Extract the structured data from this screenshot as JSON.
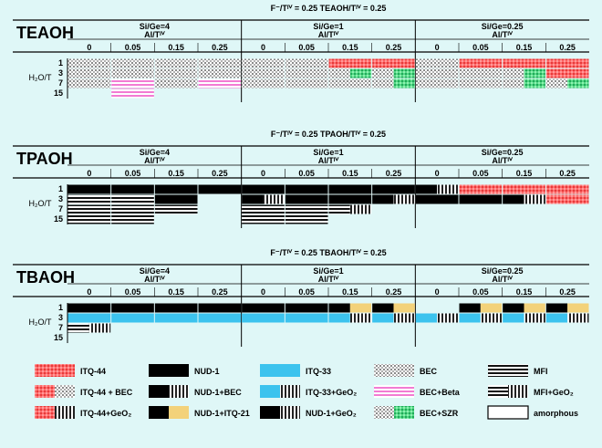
{
  "colors": {
    "background": "#dff7f7",
    "itq44": "#ff5a5a",
    "itq33": "#3cc3ee",
    "nud1": "#000000",
    "yellow": "#f3d27a",
    "szr": "#3fcf6f",
    "beta": "#f48ad8",
    "bec": "#9a9a9a"
  },
  "sections": [
    {
      "title": "TEAOH",
      "header": "F⁻/Tᴵⱽ = 0.25 TEAOH/Tᴵⱽ = 0.25",
      "groups": [
        "Si/Ge=4",
        "Si/Ge=1",
        "Si/Ge=0.25"
      ],
      "al_label": "Al/Tᴵⱽ",
      "al_values": [
        "0",
        "0.05",
        "0.15",
        "0.25"
      ],
      "h2o_label": "H₂O/T",
      "h2o_values": [
        "1",
        "3",
        "7",
        "15"
      ],
      "rows": [
        [
          "BEC",
          "BEC",
          "BEC",
          "BEC",
          "BEC",
          "BEC",
          "ITQ44",
          "ITQ44",
          "BEC",
          "ITQ44",
          "ITQ44",
          "ITQ44"
        ],
        [
          "BEC",
          "BEC",
          "BEC",
          "BEC",
          "BEC",
          "BEC",
          "BECSZR",
          "BECSZR",
          "BEC",
          "BEC",
          "BECSZR",
          "ITQ44"
        ],
        [
          "BEC",
          "BECBETA",
          "BEC",
          "BECBETA",
          "BEC",
          "BEC",
          "BEC",
          "BECSZR",
          "BEC",
          "BEC",
          "BECSZR",
          "BECSZR"
        ],
        [
          "",
          "BECBETA",
          "",
          "",
          "",
          "",
          "",
          "",
          "",
          "",
          "",
          ""
        ]
      ]
    },
    {
      "title": "TPAOH",
      "header": "F⁻/Tᴵⱽ = 0.25 TPAOH/Tᴵⱽ = 0.25",
      "groups": [
        "Si/Ge=4",
        "Si/Ge=1",
        "Si/Ge=0.25"
      ],
      "al_label": "Al/Tᴵⱽ",
      "al_values": [
        "0",
        "0.05",
        "0.15",
        "0.25"
      ],
      "h2o_label": "H₂O/T",
      "h2o_values": [
        "1",
        "3",
        "7",
        "15"
      ],
      "rows": [
        [
          "NUD1",
          "NUD1",
          "NUD1",
          "NUD1",
          "NUD1",
          "NUD1",
          "NUD1",
          "NUD1",
          "NUD1BEC",
          "ITQ44",
          "ITQ44",
          "ITQ44"
        ],
        [
          "MFI",
          "MFI",
          "NUD1",
          "",
          "NUD1BEC",
          "NUD1",
          "NUD1",
          "NUD1BEC",
          "NUD1",
          "NUD1",
          "NUD1BEC",
          "ITQ44"
        ],
        [
          "MFI",
          "MFI",
          "MFI",
          "",
          "MFI",
          "MFI",
          "MFIGEO2",
          "",
          "",
          "",
          "",
          ""
        ],
        [
          "MFI",
          "MFI",
          "",
          "",
          "MFI",
          "MFI",
          "",
          "",
          "",
          "",
          "",
          ""
        ]
      ]
    },
    {
      "title": "TBAOH",
      "header": "F⁻/Tᴵⱽ = 0.25 TBAOH/Tᴵⱽ = 0.25",
      "groups": [
        "Si/Ge=4",
        "Si/Ge=1",
        "Si/Ge=0.25"
      ],
      "al_label": "Al/Tᴵⱽ",
      "al_values": [
        "0",
        "0.05",
        "0.15",
        "0.25"
      ],
      "h2o_label": "H₂O/T",
      "h2o_values": [
        "1",
        "3",
        "7",
        "15"
      ],
      "rows": [
        [
          "NUD1",
          "NUD1",
          "NUD1",
          "NUD1",
          "NUD1",
          "NUD1",
          "NUD1ITQ21",
          "NUD1ITQ21",
          "",
          "NUD1ITQ21",
          "NUD1ITQ21",
          "NUD1ITQ21"
        ],
        [
          "ITQ33",
          "ITQ33",
          "ITQ33",
          "ITQ33",
          "ITQ33",
          "ITQ33",
          "ITQ33GEO2",
          "ITQ33GEO2",
          "ITQ33GEO2",
          "ITQ33GEO2",
          "ITQ33GEO2",
          "ITQ33GEO2"
        ],
        [
          "MFIGEO2",
          "",
          "",
          "",
          "",
          "",
          "",
          "",
          "",
          "",
          "",
          ""
        ],
        [
          "",
          "",
          "",
          "",
          "",
          "",
          "",
          "",
          "",
          "",
          "",
          ""
        ]
      ]
    }
  ],
  "legend": [
    {
      "key": "ITQ44",
      "label": "ITQ-44"
    },
    {
      "key": "NUD1",
      "label": "NUD-1"
    },
    {
      "key": "ITQ33",
      "label": "ITQ-33"
    },
    {
      "key": "BEC",
      "label": "BEC"
    },
    {
      "key": "MFI",
      "label": "MFI"
    },
    {
      "key": "ITQ44BEC",
      "label": "ITQ-44 + BEC"
    },
    {
      "key": "NUD1BEC",
      "label": "NUD-1+BEC"
    },
    {
      "key": "ITQ33GEO2",
      "label": "ITQ-33+GeO₂"
    },
    {
      "key": "BECBETA",
      "label": "BEC+Beta"
    },
    {
      "key": "MFIGEO2",
      "label": "MFI+GeO₂"
    },
    {
      "key": "ITQ44GEO2",
      "label": "ITQ-44+GeO₂"
    },
    {
      "key": "NUD1ITQ21",
      "label": "NUD-1+ITQ-21"
    },
    {
      "key": "NUD1GEO2",
      "label": "NUD-1+GeO₂"
    },
    {
      "key": "BECSZR",
      "label": "BEC+SZR"
    },
    {
      "key": "AMORPHOUS",
      "label": "amorphous"
    }
  ]
}
